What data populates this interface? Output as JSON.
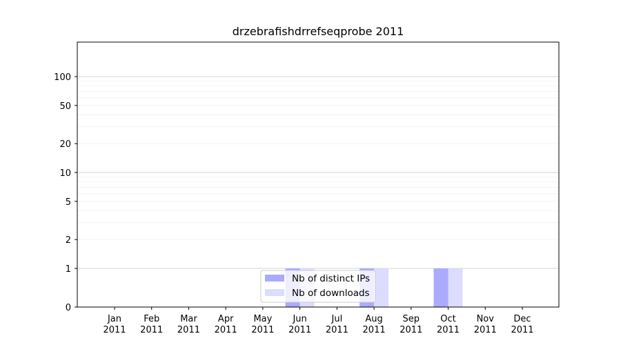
{
  "chart_data": {
    "type": "bar",
    "title": "drzebrafishdrrefseqprobe 2011",
    "xlabel": "",
    "ylabel": "",
    "y_scale": "symlog",
    "y_ticks": [
      0,
      1,
      2,
      5,
      10,
      20,
      50,
      100
    ],
    "y_tick_labels": [
      "0",
      "1",
      "2",
      "5",
      "10",
      "20",
      "50",
      "100"
    ],
    "grid": true,
    "legend_position": "bottom-center",
    "categories": [
      "Jan 2011",
      "Feb 2011",
      "Mar 2011",
      "Apr 2011",
      "May 2011",
      "Jun 2011",
      "Jul 2011",
      "Aug 2011",
      "Sep 2011",
      "Oct 2011",
      "Nov 2011",
      "Dec 2011"
    ],
    "category_month": [
      "Jan",
      "Feb",
      "Mar",
      "Apr",
      "May",
      "Jun",
      "Jul",
      "Aug",
      "Sep",
      "Oct",
      "Nov",
      "Dec"
    ],
    "category_year": [
      "2011",
      "2011",
      "2011",
      "2011",
      "2011",
      "2011",
      "2011",
      "2011",
      "2011",
      "2011",
      "2011",
      "2011"
    ],
    "series": [
      {
        "name": "Nb of distinct IPs",
        "color": "#aaaaff",
        "values": [
          0,
          0,
          0,
          0,
          0,
          1,
          0,
          1,
          0,
          1,
          0,
          0
        ]
      },
      {
        "name": "Nb of downloads",
        "color": "#dcdcff",
        "values": [
          0,
          0,
          0,
          0,
          0,
          1,
          0,
          1,
          0,
          1,
          0,
          0
        ]
      }
    ]
  }
}
